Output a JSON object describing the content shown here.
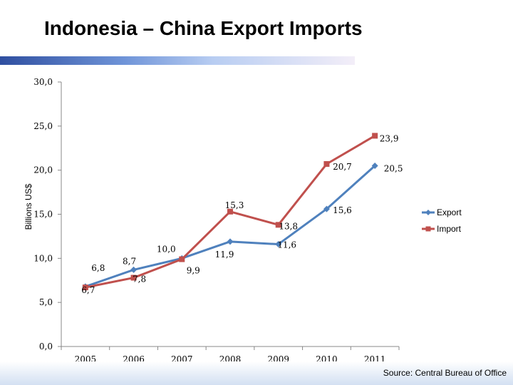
{
  "page": {
    "title": "Indonesia – China Export Imports",
    "source": "Source: Central Bureau of Office"
  },
  "colors": {
    "export": "#4f81bd",
    "import": "#c0504d"
  },
  "chart_data": {
    "type": "line",
    "title": "",
    "xlabel": "",
    "ylabel": "Billions US$",
    "categories": [
      "2005",
      "2006",
      "2007",
      "2008",
      "2009",
      "2010",
      "2011"
    ],
    "ylim": [
      0,
      30
    ],
    "yticks": [
      "0,0",
      "5,0",
      "10,0",
      "15,0",
      "20,0",
      "25,0",
      "30,0"
    ],
    "grid": false,
    "legend_position": "right",
    "series": [
      {
        "name": "Export",
        "values": [
          6.8,
          8.7,
          10.0,
          11.9,
          11.6,
          15.6,
          20.5
        ],
        "labels": [
          "6,8",
          "8,7",
          "10,0",
          "11,9",
          "11,6",
          "15,6",
          "20,5"
        ]
      },
      {
        "name": "Import",
        "values": [
          6.7,
          7.8,
          9.9,
          15.3,
          13.8,
          20.7,
          23.9
        ],
        "labels": [
          "6,7",
          "7,8",
          "9,9",
          "15,3",
          "13,8",
          "20,7",
          "23,9"
        ]
      }
    ]
  }
}
